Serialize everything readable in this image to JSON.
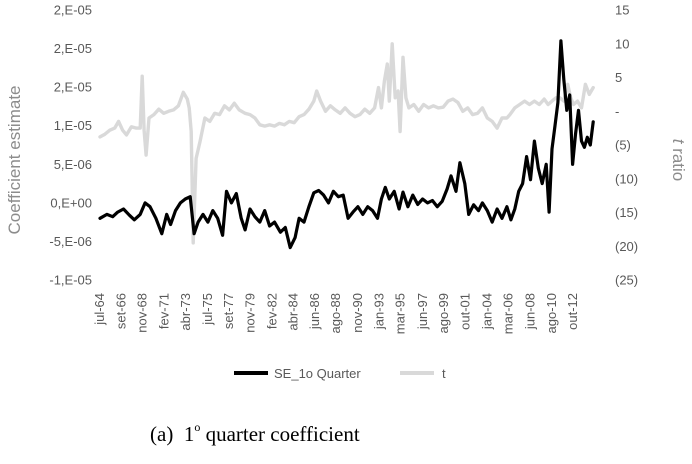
{
  "chart_data": {
    "type": "line",
    "ylabel_left": "Coefficient estimate",
    "ylabel_right_italic": "t",
    "ylabel_right_rest": " ratio",
    "y_left": {
      "range": [
        -1e-05,
        2.5e-05
      ],
      "ticks": [
        -1e-05,
        -5e-06,
        0,
        5e-06,
        1e-05,
        1.5e-05,
        2e-05,
        2.5e-05
      ],
      "tick_labels": [
        "-1,E-05",
        "-5,E-06",
        "0,E+00",
        "5,E-06",
        "1,E-05",
        "2,E-05",
        "2,E-05",
        "2,E-05"
      ]
    },
    "y_right": {
      "range": [
        -25,
        15
      ],
      "ticks": [
        -25,
        -20,
        -15,
        -10,
        -5,
        0,
        5,
        10,
        15
      ],
      "tick_labels": [
        "(25)",
        "(20)",
        "(15)",
        "(10)",
        "(5)",
        "-",
        "5",
        "10",
        "15"
      ]
    },
    "x": {
      "range": [
        1964.5,
        2016.0
      ],
      "tick_values": [
        1964.5,
        1966.67,
        1968.83,
        1971.08,
        1973.25,
        1975.5,
        1977.67,
        1979.83,
        1982.08,
        1984.25,
        1986.42,
        1988.58,
        1990.83,
        1993.0,
        1995.17,
        1997.42,
        1999.58,
        2001.75,
        2004.0,
        2006.17,
        2008.42,
        2010.58,
        2012.75
      ],
      "tick_labels": [
        "jul-64",
        "set-66",
        "nov-68",
        "fev-71",
        "abr-73",
        "jul-75",
        "set-77",
        "nov-79",
        "fev-82",
        "abr-84",
        "jun-86",
        "ago-88",
        "nov-90",
        "jan-93",
        "mar-95",
        "jun-97",
        "ago-99",
        "out-01",
        "jan-04",
        "mar-06",
        "jun-08",
        "ago-10",
        "out-12"
      ]
    },
    "legend_position": "bottom",
    "gridlines": false,
    "series": [
      {
        "name": "SE_1o Quarter",
        "axis": "left",
        "color": "#000000",
        "points": [
          [
            1964.5,
            -2e-06
          ],
          [
            1965.2,
            -1.5e-06
          ],
          [
            1965.8,
            -1.8e-06
          ],
          [
            1966.3,
            -1.2e-06
          ],
          [
            1966.9,
            -8e-07
          ],
          [
            1967.5,
            -1.6e-06
          ],
          [
            1968.0,
            -2.2e-06
          ],
          [
            1968.6,
            -1.5e-06
          ],
          [
            1969.1,
            0
          ],
          [
            1969.6,
            -5e-07
          ],
          [
            1970.2,
            -2e-06
          ],
          [
            1970.8,
            -4e-06
          ],
          [
            1971.3,
            -1.5e-06
          ],
          [
            1971.7,
            -2.8e-06
          ],
          [
            1972.2,
            -1e-06
          ],
          [
            1972.7,
            0
          ],
          [
            1973.2,
            5e-07
          ],
          [
            1973.7,
            8e-07
          ],
          [
            1974.1,
            -4e-06
          ],
          [
            1974.5,
            -2.5e-06
          ],
          [
            1975.0,
            -1.5e-06
          ],
          [
            1975.5,
            -2.5e-06
          ],
          [
            1976.0,
            -1e-06
          ],
          [
            1976.5,
            -2e-06
          ],
          [
            1977.0,
            -4.2e-06
          ],
          [
            1977.4,
            1.5e-06
          ],
          [
            1977.9,
            0
          ],
          [
            1978.4,
            1.2e-06
          ],
          [
            1978.9,
            -2e-06
          ],
          [
            1979.3,
            -3.5e-06
          ],
          [
            1979.8,
            -8e-07
          ],
          [
            1980.3,
            -1.8e-06
          ],
          [
            1980.8,
            -2.5e-06
          ],
          [
            1981.3,
            -1e-06
          ],
          [
            1981.8,
            -3e-06
          ],
          [
            1982.3,
            -2.5e-06
          ],
          [
            1982.9,
            -3.8e-06
          ],
          [
            1983.4,
            -3.2e-06
          ],
          [
            1983.9,
            -5.8e-06
          ],
          [
            1984.4,
            -4.5e-06
          ],
          [
            1984.8,
            -2e-06
          ],
          [
            1985.3,
            -2.5e-06
          ],
          [
            1985.8,
            -5e-07
          ],
          [
            1986.3,
            1.3e-06
          ],
          [
            1986.8,
            1.6e-06
          ],
          [
            1987.3,
            1e-06
          ],
          [
            1987.8,
            0
          ],
          [
            1988.3,
            1.5e-06
          ],
          [
            1988.8,
            8e-07
          ],
          [
            1989.3,
            1e-06
          ],
          [
            1989.8,
            -2e-06
          ],
          [
            1990.3,
            -1.2e-06
          ],
          [
            1990.8,
            -5e-07
          ],
          [
            1991.3,
            -1.5e-06
          ],
          [
            1991.8,
            -5e-07
          ],
          [
            1992.3,
            -1e-06
          ],
          [
            1992.8,
            -2e-06
          ],
          [
            1993.2,
            5e-07
          ],
          [
            1993.6,
            2e-06
          ],
          [
            1994.0,
            5e-07
          ],
          [
            1994.5,
            1.5e-06
          ],
          [
            1995.0,
            -8e-07
          ],
          [
            1995.4,
            1.4e-06
          ],
          [
            1995.9,
            -5e-07
          ],
          [
            1996.4,
            1e-06
          ],
          [
            1996.9,
            -2e-07
          ],
          [
            1997.4,
            5e-07
          ],
          [
            1997.9,
            0
          ],
          [
            1998.4,
            3e-07
          ],
          [
            1998.9,
            -5e-07
          ],
          [
            1999.4,
            2e-07
          ],
          [
            1999.9,
            1.8e-06
          ],
          [
            2000.3,
            3.5e-06
          ],
          [
            2000.8,
            1.5e-06
          ],
          [
            2001.2,
            5.2e-06
          ],
          [
            2001.7,
            2.5e-06
          ],
          [
            2002.1,
            -1.5e-06
          ],
          [
            2002.6,
            -2.5e-07
          ],
          [
            2003.1,
            -1e-06
          ],
          [
            2003.5,
            0
          ],
          [
            2004.0,
            -1e-06
          ],
          [
            2004.5,
            -2.5e-06
          ],
          [
            2005.0,
            -8e-07
          ],
          [
            2005.5,
            -2e-06
          ],
          [
            2006.0,
            -5e-07
          ],
          [
            2006.4,
            -2.2e-06
          ],
          [
            2006.8,
            -8e-07
          ],
          [
            2007.2,
            1.5e-06
          ],
          [
            2007.6,
            2.5e-06
          ],
          [
            2008.0,
            6e-06
          ],
          [
            2008.4,
            3e-06
          ],
          [
            2008.8,
            8e-06
          ],
          [
            2009.2,
            4.5e-06
          ],
          [
            2009.6,
            2.5e-06
          ],
          [
            2010.0,
            5e-06
          ],
          [
            2010.3,
            -1.2e-06
          ],
          [
            2010.6,
            7e-06
          ],
          [
            2010.9,
            1e-05
          ],
          [
            2011.2,
            1.3e-05
          ],
          [
            2011.5,
            2.1e-05
          ],
          [
            2011.8,
            1.6e-05
          ],
          [
            2012.1,
            1.2e-05
          ],
          [
            2012.4,
            1.4e-05
          ],
          [
            2012.7,
            5e-06
          ],
          [
            2013.0,
            9e-06
          ],
          [
            2013.3,
            1.2e-05
          ],
          [
            2013.6,
            8e-06
          ],
          [
            2013.9,
            7.2e-06
          ],
          [
            2014.2,
            8.5e-06
          ],
          [
            2014.5,
            7.5e-06
          ],
          [
            2014.8,
            1.05e-05
          ]
        ]
      },
      {
        "name": "t",
        "axis": "right",
        "color": "#d9d9d9",
        "points": [
          [
            1964.5,
            -3.8
          ],
          [
            1965.0,
            -3.4
          ],
          [
            1965.5,
            -2.8
          ],
          [
            1966.0,
            -2.5
          ],
          [
            1966.4,
            -1.5
          ],
          [
            1966.8,
            -2.8
          ],
          [
            1967.2,
            -3.5
          ],
          [
            1967.7,
            -2.3
          ],
          [
            1968.2,
            -2.5
          ],
          [
            1968.6,
            -2.5
          ],
          [
            1968.8,
            5.2
          ],
          [
            1969.0,
            -2.8
          ],
          [
            1969.2,
            -6.5
          ],
          [
            1969.5,
            -1.0
          ],
          [
            1970.0,
            -0.5
          ],
          [
            1970.5,
            0.3
          ],
          [
            1971.0,
            -0.3
          ],
          [
            1971.5,
            0.0
          ],
          [
            1972.0,
            0.2
          ],
          [
            1972.5,
            0.8
          ],
          [
            1973.0,
            2.8
          ],
          [
            1973.4,
            1.8
          ],
          [
            1973.6,
            0.5
          ],
          [
            1973.8,
            -3.0
          ],
          [
            1974.0,
            -19.5
          ],
          [
            1974.3,
            -7.0
          ],
          [
            1974.7,
            -4.5
          ],
          [
            1975.2,
            -1.0
          ],
          [
            1975.7,
            -1.5
          ],
          [
            1976.2,
            -0.3
          ],
          [
            1976.7,
            -0.5
          ],
          [
            1977.2,
            0.8
          ],
          [
            1977.7,
            0.2
          ],
          [
            1978.2,
            1.2
          ],
          [
            1978.7,
            0.2
          ],
          [
            1979.3,
            -0.3
          ],
          [
            1979.8,
            -0.5
          ],
          [
            1980.3,
            -1.0
          ],
          [
            1980.8,
            -2.0
          ],
          [
            1981.3,
            -2.2
          ],
          [
            1981.8,
            -2.0
          ],
          [
            1982.3,
            -2.2
          ],
          [
            1982.8,
            -1.8
          ],
          [
            1983.3,
            -2.0
          ],
          [
            1983.8,
            -1.5
          ],
          [
            1984.3,
            -1.7
          ],
          [
            1984.8,
            -0.8
          ],
          [
            1985.3,
            -0.5
          ],
          [
            1985.8,
            0.3
          ],
          [
            1986.3,
            1.5
          ],
          [
            1986.6,
            3.0
          ],
          [
            1987.0,
            1.5
          ],
          [
            1987.5,
            0.0
          ],
          [
            1988.0,
            0.8
          ],
          [
            1988.5,
            0.2
          ],
          [
            1989.0,
            -0.3
          ],
          [
            1989.5,
            0.5
          ],
          [
            1990.0,
            -0.3
          ],
          [
            1990.5,
            -0.8
          ],
          [
            1991.0,
            -0.5
          ],
          [
            1991.5,
            0.3
          ],
          [
            1992.0,
            -0.3
          ],
          [
            1992.5,
            0.5
          ],
          [
            1992.9,
            3.5
          ],
          [
            1993.2,
            0.5
          ],
          [
            1993.5,
            4.5
          ],
          [
            1993.8,
            7.0
          ],
          [
            1994.0,
            1.5
          ],
          [
            1994.3,
            10.0
          ],
          [
            1994.6,
            2.0
          ],
          [
            1994.9,
            3.0
          ],
          [
            1995.1,
            -3.0
          ],
          [
            1995.4,
            8.0
          ],
          [
            1995.7,
            2.0
          ],
          [
            1996.0,
            0.5
          ],
          [
            1996.5,
            1.0
          ],
          [
            1997.0,
            0.0
          ],
          [
            1997.5,
            1.0
          ],
          [
            1998.0,
            0.5
          ],
          [
            1998.5,
            0.8
          ],
          [
            1999.0,
            0.5
          ],
          [
            1999.5,
            0.6
          ],
          [
            2000.0,
            1.5
          ],
          [
            2000.5,
            1.8
          ],
          [
            2001.0,
            1.3
          ],
          [
            2001.5,
            0.0
          ],
          [
            2002.0,
            0.5
          ],
          [
            2002.5,
            -0.5
          ],
          [
            2003.0,
            -0.3
          ],
          [
            2003.5,
            0.5
          ],
          [
            2004.0,
            -1.0
          ],
          [
            2004.5,
            -1.5
          ],
          [
            2005.0,
            -2.5
          ],
          [
            2005.5,
            -1.0
          ],
          [
            2006.0,
            -1.0
          ],
          [
            2006.3,
            -0.5
          ],
          [
            2006.8,
            0.5
          ],
          [
            2007.3,
            1.0
          ],
          [
            2007.8,
            1.5
          ],
          [
            2008.3,
            1.0
          ],
          [
            2008.8,
            1.5
          ],
          [
            2009.3,
            1.0
          ],
          [
            2009.8,
            1.8
          ],
          [
            2010.2,
            1.0
          ],
          [
            2010.6,
            1.5
          ],
          [
            2011.0,
            2.0
          ],
          [
            2011.4,
            2.0
          ],
          [
            2011.8,
            1.5
          ],
          [
            2012.2,
            4.0
          ],
          [
            2012.5,
            2.0
          ],
          [
            2012.8,
            1.0
          ],
          [
            2013.2,
            1.5
          ],
          [
            2013.6,
            0.5
          ],
          [
            2014.0,
            4.0
          ],
          [
            2014.4,
            2.5
          ],
          [
            2014.8,
            3.5
          ]
        ]
      }
    ]
  },
  "caption": {
    "prefix": "(a)",
    "number": "1",
    "superscript": "o",
    "text": " quarter coefficient"
  }
}
